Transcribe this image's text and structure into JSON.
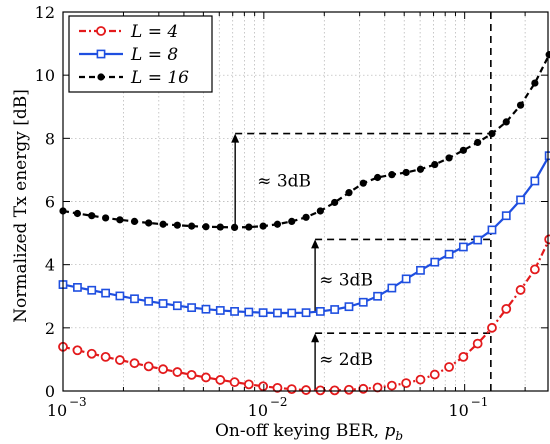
{
  "chart_data": {
    "type": "line",
    "xlabel": "On-off keying BER, ",
    "xlabel_symbol": "p",
    "xlabel_sub": "b",
    "ylabel": "Normalized Tx energy [dB]",
    "xscale": "log",
    "xlim": [
      0.001,
      0.26
    ],
    "ylim": [
      0,
      12
    ],
    "grid": true,
    "legend_position": "top-left",
    "x_ticks": [
      {
        "value": 0.001,
        "base": "10",
        "exp": "−3"
      },
      {
        "value": 0.01,
        "base": "10",
        "exp": "−2"
      },
      {
        "value": 0.1,
        "base": "10",
        "exp": "−1"
      }
    ],
    "y_ticks": [
      "0",
      "2",
      "4",
      "6",
      "8",
      "10",
      "12"
    ],
    "series": [
      {
        "name": "L = 4",
        "color": "#e31a1c",
        "marker": "circle",
        "line": "dash-dot",
        "points": [
          [
            0.001,
            1.4
          ],
          [
            0.00118,
            1.29
          ],
          [
            0.00139,
            1.18
          ],
          [
            0.00163,
            1.08
          ],
          [
            0.00192,
            0.98
          ],
          [
            0.00227,
            0.88
          ],
          [
            0.00267,
            0.78
          ],
          [
            0.00315,
            0.69
          ],
          [
            0.00371,
            0.6
          ],
          [
            0.00437,
            0.51
          ],
          [
            0.00515,
            0.43
          ],
          [
            0.00607,
            0.35
          ],
          [
            0.00715,
            0.28
          ],
          [
            0.00842,
            0.21
          ],
          [
            0.00992,
            0.15
          ],
          [
            0.01169,
            0.1
          ],
          [
            0.01377,
            0.06
          ],
          [
            0.01623,
            0.03
          ],
          [
            0.01912,
            0.02
          ],
          [
            0.02253,
            0.02
          ],
          [
            0.02654,
            0.04
          ],
          [
            0.03127,
            0.07
          ],
          [
            0.03684,
            0.11
          ],
          [
            0.0434,
            0.17
          ],
          [
            0.05114,
            0.25
          ],
          [
            0.06025,
            0.36
          ],
          [
            0.07098,
            0.52
          ],
          [
            0.08363,
            0.76
          ],
          [
            0.09853,
            1.08
          ],
          [
            0.11608,
            1.5
          ],
          [
            0.13677,
            2.0
          ],
          [
            0.16113,
            2.6
          ],
          [
            0.18984,
            3.2
          ],
          [
            0.22366,
            3.85
          ],
          [
            0.2635,
            4.8
          ]
        ]
      },
      {
        "name": "L = 8",
        "color": "#1f4fe0",
        "marker": "square",
        "line": "solid",
        "points": [
          [
            0.001,
            3.37
          ],
          [
            0.00118,
            3.28
          ],
          [
            0.00139,
            3.19
          ],
          [
            0.00163,
            3.1
          ],
          [
            0.00192,
            3.01
          ],
          [
            0.00227,
            2.92
          ],
          [
            0.00267,
            2.84
          ],
          [
            0.00315,
            2.77
          ],
          [
            0.00371,
            2.7
          ],
          [
            0.00437,
            2.64
          ],
          [
            0.00515,
            2.59
          ],
          [
            0.00607,
            2.55
          ],
          [
            0.00715,
            2.52
          ],
          [
            0.00842,
            2.5
          ],
          [
            0.00992,
            2.48
          ],
          [
            0.01169,
            2.47
          ],
          [
            0.01377,
            2.47
          ],
          [
            0.01623,
            2.48
          ],
          [
            0.01912,
            2.52
          ],
          [
            0.02253,
            2.58
          ],
          [
            0.02654,
            2.67
          ],
          [
            0.03127,
            2.81
          ],
          [
            0.03684,
            3.0
          ],
          [
            0.0434,
            3.26
          ],
          [
            0.05114,
            3.55
          ],
          [
            0.06025,
            3.82
          ],
          [
            0.07098,
            4.08
          ],
          [
            0.08363,
            4.33
          ],
          [
            0.09853,
            4.56
          ],
          [
            0.11608,
            4.78
          ],
          [
            0.13677,
            5.1
          ],
          [
            0.16113,
            5.55
          ],
          [
            0.18984,
            6.05
          ],
          [
            0.22366,
            6.65
          ],
          [
            0.2635,
            7.45
          ]
        ]
      },
      {
        "name": "L = 16",
        "color": "#000000",
        "marker": "dot",
        "line": "dashed",
        "points": [
          [
            0.001,
            5.7
          ],
          [
            0.00118,
            5.62
          ],
          [
            0.00139,
            5.55
          ],
          [
            0.00163,
            5.48
          ],
          [
            0.00192,
            5.42
          ],
          [
            0.00227,
            5.37
          ],
          [
            0.00267,
            5.32
          ],
          [
            0.00315,
            5.28
          ],
          [
            0.00371,
            5.25
          ],
          [
            0.00437,
            5.22
          ],
          [
            0.00515,
            5.2
          ],
          [
            0.00607,
            5.19
          ],
          [
            0.00715,
            5.18
          ],
          [
            0.00842,
            5.19
          ],
          [
            0.00992,
            5.22
          ],
          [
            0.01169,
            5.28
          ],
          [
            0.01377,
            5.37
          ],
          [
            0.01623,
            5.5
          ],
          [
            0.01912,
            5.7
          ],
          [
            0.02253,
            5.97
          ],
          [
            0.02654,
            6.28
          ],
          [
            0.03127,
            6.58
          ],
          [
            0.03684,
            6.76
          ],
          [
            0.0434,
            6.85
          ],
          [
            0.05114,
            6.92
          ],
          [
            0.06025,
            7.02
          ],
          [
            0.07098,
            7.17
          ],
          [
            0.08363,
            7.38
          ],
          [
            0.09853,
            7.62
          ],
          [
            0.11608,
            7.87
          ],
          [
            0.13677,
            8.15
          ],
          [
            0.16113,
            8.52
          ],
          [
            0.18984,
            9.05
          ],
          [
            0.22366,
            9.75
          ],
          [
            0.2635,
            10.65
          ]
        ]
      }
    ],
    "annotations": [
      {
        "text": "≈ 3dB",
        "arrow_x": 0.0072,
        "arrow_from": 5.18,
        "arrow_to": 8.15,
        "bracket_x_end": 0.135
      },
      {
        "text": "≈ 3dB",
        "arrow_x": 0.018,
        "arrow_from": 2.48,
        "arrow_to": 4.8,
        "bracket_x_end": 0.135
      },
      {
        "text": "≈ 2dB",
        "arrow_x": 0.018,
        "arrow_from": 0.02,
        "arrow_to": 1.83,
        "bracket_x_end": 0.135
      }
    ],
    "threshold_x": 0.135
  }
}
